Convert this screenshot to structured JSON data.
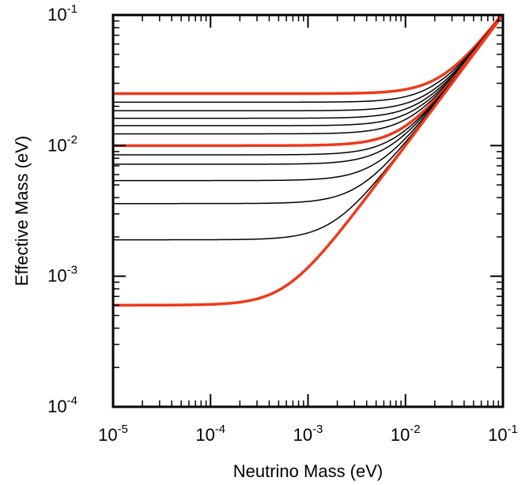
{
  "chart_data": {
    "type": "line",
    "title": "",
    "xlabel": "Neutrino Mass (eV)",
    "ylabel": "Effective Mass (eV)",
    "x_scale": "log",
    "y_scale": "log",
    "xlim": [
      1e-05,
      0.1
    ],
    "ylim": [
      0.0001,
      0.1
    ],
    "grid": false,
    "legend": "none",
    "colors": {
      "highlight": "#ee3a1c",
      "normal": "#000000"
    },
    "x_ticks": [
      {
        "value": 1e-05,
        "base": "10",
        "exp": "-5"
      },
      {
        "value": 0.0001,
        "base": "10",
        "exp": "-4"
      },
      {
        "value": 0.001,
        "base": "10",
        "exp": "-3"
      },
      {
        "value": 0.01,
        "base": "10",
        "exp": "-2"
      },
      {
        "value": 0.1,
        "base": "10",
        "exp": "-1"
      }
    ],
    "y_ticks": [
      {
        "value": 0.0001,
        "base": "10",
        "exp": "-4"
      },
      {
        "value": 0.001,
        "base": "10",
        "exp": "-3"
      },
      {
        "value": 0.01,
        "base": "10",
        "exp": "-2"
      },
      {
        "value": 0.1,
        "base": "10",
        "exp": "-1"
      }
    ],
    "series": [
      {
        "plateau": 0.025,
        "highlight": true
      },
      {
        "plateau": 0.0215,
        "highlight": false
      },
      {
        "plateau": 0.0185,
        "highlight": false
      },
      {
        "plateau": 0.0162,
        "highlight": false
      },
      {
        "plateau": 0.0142,
        "highlight": false
      },
      {
        "plateau": 0.0123,
        "highlight": false
      },
      {
        "plateau": 0.01,
        "highlight": true
      },
      {
        "plateau": 0.0085,
        "highlight": false
      },
      {
        "plateau": 0.0072,
        "highlight": false
      },
      {
        "plateau": 0.0054,
        "highlight": false
      },
      {
        "plateau": 0.0036,
        "highlight": false
      },
      {
        "plateau": 0.0019,
        "highlight": false
      },
      {
        "plateau": 0.0006,
        "highlight": true
      }
    ]
  }
}
